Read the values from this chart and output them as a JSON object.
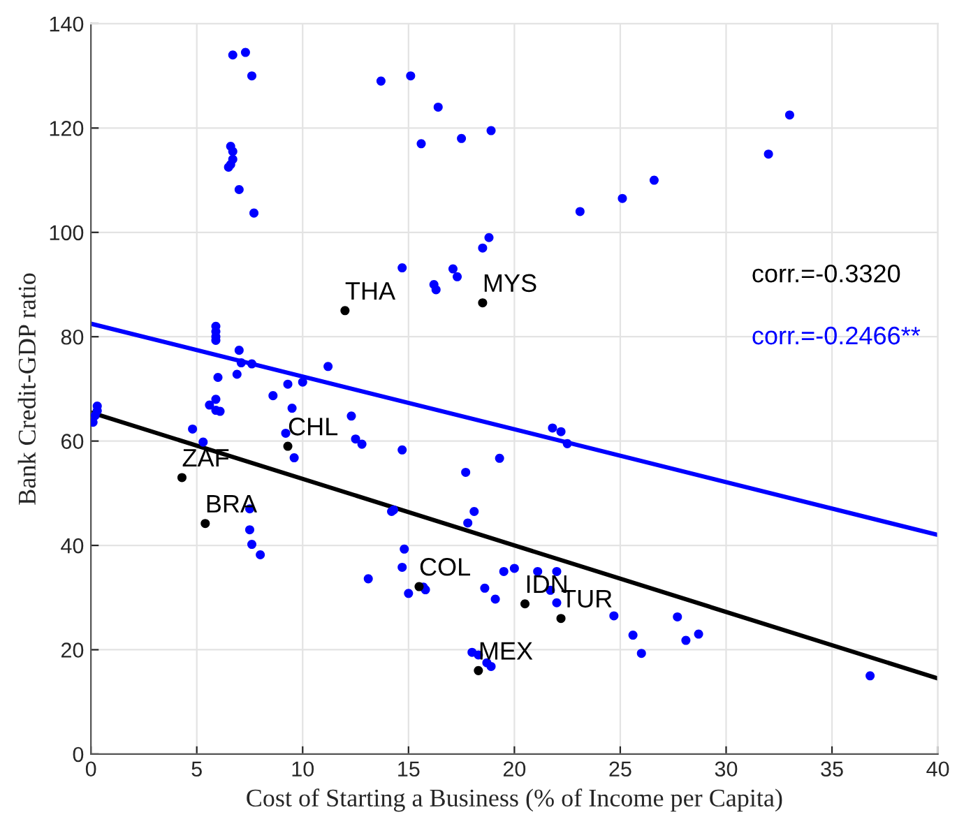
{
  "chart_data": {
    "type": "scatter",
    "xlabel": "Cost of Starting a Business (% of Income per Capita)",
    "ylabel": "Bank Credit-GDP ratio",
    "xlim": [
      0,
      40
    ],
    "xticks": [
      0,
      5,
      10,
      15,
      20,
      25,
      30,
      35,
      40
    ],
    "ylim": [
      0,
      140
    ],
    "yticks": [
      0,
      20,
      40,
      60,
      80,
      100,
      120,
      140
    ],
    "grid": true,
    "series": [
      {
        "color": "#0000ff",
        "marker": "circle",
        "x": [
          6.7,
          7.3,
          7.6,
          13.7,
          15.1,
          16.4,
          15.6,
          17.5,
          18.9,
          33.0,
          32.0,
          26.6,
          25.1,
          23.1,
          7.7,
          6.6,
          6.7,
          6.7,
          6.6,
          6.5,
          7.0,
          14.7,
          17.1,
          17.3,
          16.2,
          16.3,
          18.5,
          18.8,
          5.9,
          5.9,
          5.9,
          5.9,
          7.0,
          7.1,
          6.0,
          6.9,
          7.6,
          11.2,
          10.0,
          9.3,
          8.6,
          5.9,
          5.6,
          5.9,
          6.1,
          4.8,
          5.3,
          9.2,
          9.5,
          9.6,
          12.3,
          12.5,
          12.8,
          14.7,
          19.3,
          17.7,
          21.8,
          22.2,
          22.5,
          0.3,
          0.3,
          0.2,
          0.1,
          7.5,
          7.5,
          7.6,
          8.0,
          14.2,
          14.3,
          18.1,
          17.8,
          14.8,
          14.7,
          13.1,
          15.0,
          15.7,
          15.8,
          18.6,
          19.1,
          19.5,
          20.0,
          21.1,
          22.0,
          22.0,
          21.7,
          24.7,
          25.6,
          26.0,
          27.7,
          28.1,
          28.7,
          36.8,
          18.0,
          18.3,
          18.7,
          18.9
        ],
        "values": [
          134,
          134.5,
          130,
          129,
          130,
          124,
          117,
          118,
          119.5,
          122.5,
          115,
          110,
          106.5,
          104,
          103.7,
          116.5,
          115.5,
          114,
          113,
          112.5,
          108.2,
          93.2,
          93,
          91.5,
          90,
          89,
          97,
          99,
          82,
          81,
          80,
          79.3,
          77.4,
          75,
          72.2,
          72.8,
          74.8,
          74.3,
          71.3,
          70.9,
          68.7,
          68,
          66.9,
          65.9,
          65.7,
          62.3,
          59.8,
          61.5,
          66.3,
          56.8,
          64.8,
          60.4,
          59.4,
          58.3,
          56.7,
          54,
          62.5,
          61.8,
          59.5,
          66.7,
          65.8,
          64.9,
          63.6,
          47,
          43,
          40.2,
          38.2,
          46.5,
          46.8,
          46.5,
          44.3,
          39.3,
          35.8,
          33.6,
          30.8,
          32,
          31.5,
          31.8,
          29.7,
          35,
          35.6,
          35,
          35,
          29,
          31.4,
          26.5,
          22.8,
          19.3,
          26.3,
          21.8,
          23,
          15,
          19.5,
          19,
          17.5,
          16.8
        ]
      },
      {
        "color": "#000000",
        "marker": "circle",
        "x": [
          12.0,
          18.5,
          9.3,
          4.3,
          5.4,
          15.5,
          20.5,
          22.2,
          18.3
        ],
        "values": [
          85,
          86.5,
          59,
          53,
          44.2,
          32.1,
          28.8,
          26,
          16
        ]
      },
      {
        "type": "line",
        "color": "#000000",
        "x": [
          0,
          40
        ],
        "values": [
          65.5,
          14.5
        ]
      },
      {
        "type": "line",
        "color": "#0000ff",
        "x": [
          0,
          40
        ],
        "values": [
          82.5,
          42
        ]
      }
    ],
    "annotations": [
      "corr.=-0.3320",
      "corr.=-0.2466**",
      {
        "text": "THA",
        "x": 12.0,
        "y": 85
      },
      {
        "text": "MYS",
        "x": 18.5,
        "y": 86.5
      },
      {
        "text": "CHL",
        "x": 9.3,
        "y": 59
      },
      {
        "text": "ZAF",
        "x": 4.3,
        "y": 53
      },
      {
        "text": "BRA",
        "x": 5.4,
        "y": 44.2
      },
      {
        "text": "COL",
        "x": 15.5,
        "y": 32.1
      },
      {
        "text": "IDN",
        "x": 20.5,
        "y": 28.8
      },
      {
        "text": "TUR",
        "x": 22.2,
        "y": 26
      },
      {
        "text": "MEX",
        "x": 18.3,
        "y": 16
      }
    ]
  }
}
